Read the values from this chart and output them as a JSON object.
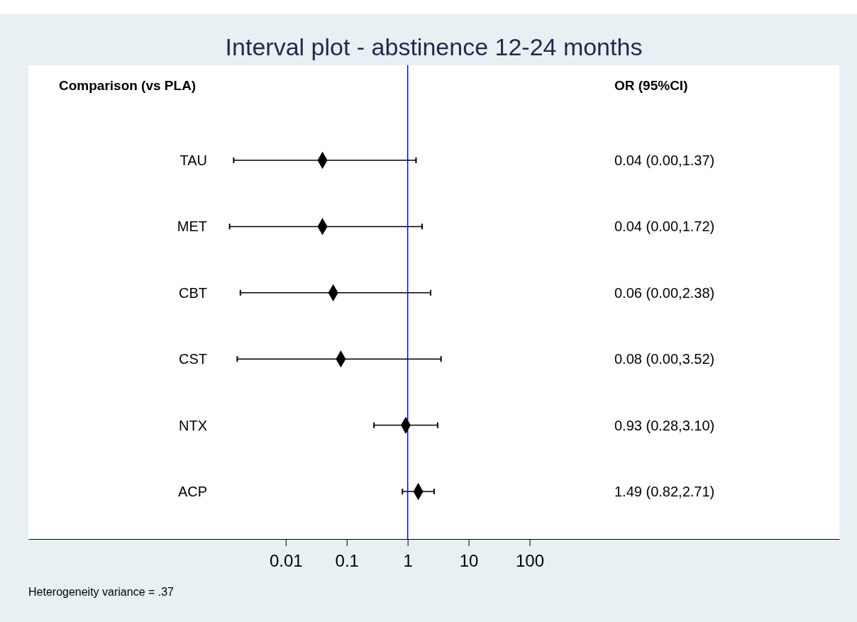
{
  "chart_data": {
    "type": "scatter",
    "orientation": "horizontal",
    "title": "Interval plot - abstinence 12-24 months",
    "categories": [
      "TAU",
      "MET",
      "CBT",
      "CST",
      "NTX",
      "ACP"
    ],
    "values": [
      0.04,
      0.04,
      0.06,
      0.08,
      0.93,
      1.49
    ],
    "errors": [
      [
        0.0014,
        1.37
      ],
      [
        0.0012,
        1.72
      ],
      [
        0.0018,
        2.38
      ],
      [
        0.0016,
        3.52
      ],
      [
        0.28,
        3.1
      ],
      [
        0.82,
        2.71
      ]
    ],
    "color": "#000000",
    "marker": "diamond",
    "log": "x",
    "grid": false,
    "xlim": [
      6e-07,
      12000000.0
    ],
    "xticks": [
      0.01,
      0.1,
      1,
      10,
      100
    ],
    "ref_lines": [
      {
        "axis": "x",
        "value": 1,
        "color": "#0000ff"
      }
    ],
    "annotations": [
      "Comparison (vs PLA)",
      "OR (95%CI)",
      "0.04 (0.00,1.37)",
      "0.04 (0.00,1.72)",
      "0.06 (0.00,2.38)",
      "0.08 (0.00,3.52)",
      "0.93 (0.28,3.10)",
      "1.49 (0.82,2.71)",
      "Heterogeneity variance = .37"
    ]
  }
}
